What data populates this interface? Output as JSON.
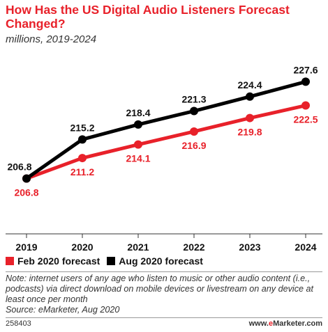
{
  "header": {
    "title": "How Has the US Digital Audio Listeners Forecast Changed?",
    "subtitle": "millions, 2019-2024"
  },
  "chart_data": {
    "type": "line",
    "title": "How Has the US Digital Audio Listeners Forecast Changed?",
    "subtitle": "millions, 2019-2024",
    "xlabel": "",
    "ylabel": "",
    "categories": [
      "2019",
      "2020",
      "2021",
      "2022",
      "2023",
      "2024"
    ],
    "series": [
      {
        "name": "Feb 2020 forecast",
        "color": "#e8212a",
        "values": [
          206.8,
          211.2,
          214.1,
          216.9,
          219.8,
          222.5
        ]
      },
      {
        "name": "Aug 2020 forecast",
        "color": "#000000",
        "values": [
          206.8,
          215.2,
          218.4,
          221.3,
          224.4,
          227.6
        ]
      }
    ],
    "ylim": [
      197,
      232
    ],
    "grid": false,
    "legend": "bottom-left"
  },
  "legend": {
    "items": [
      {
        "label": "Feb 2020 forecast",
        "color": "#e8212a"
      },
      {
        "label": "Aug 2020 forecast",
        "color": "#000000"
      }
    ]
  },
  "note": "Note: internet users of any age who listen to music or other audio content (i.e., podcasts) via direct download on mobile devices or livestream on any device at least once per month",
  "source": "Source: eMarketer, Aug 2020",
  "footer": {
    "id": "258403",
    "brand_prefix": "www.",
    "brand_accent": "e",
    "brand_rest": "Marketer.com"
  }
}
